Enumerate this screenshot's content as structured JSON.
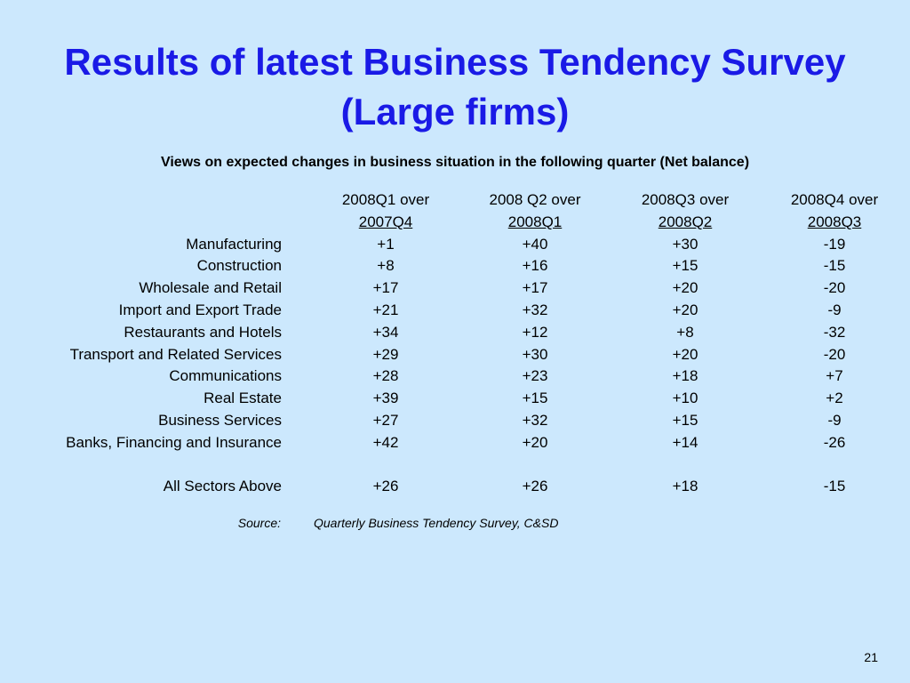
{
  "title_line1": "Results of latest Business Tendency Survey",
  "title_line2": "(Large firms)",
  "subtitle": "Views on expected changes in business situation in the following quarter (Net balance)",
  "columns": [
    {
      "line1": "2008Q1 over",
      "line2": "2007Q4"
    },
    {
      "line1": "2008 Q2 over",
      "line2": "2008Q1"
    },
    {
      "line1": "2008Q3 over",
      "line2": "2008Q2"
    },
    {
      "line1": "2008Q4 over",
      "line2": "2008Q3"
    }
  ],
  "rows": [
    {
      "label": "Manufacturing",
      "values": [
        "+1",
        "+40",
        "+30",
        "-19"
      ]
    },
    {
      "label": "Construction",
      "values": [
        "+8",
        "+16",
        "+15",
        "-15"
      ]
    },
    {
      "label": "Wholesale and Retail",
      "values": [
        "+17",
        "+17",
        "+20",
        "-20"
      ]
    },
    {
      "label": "Import and Export Trade",
      "values": [
        "+21",
        "+32",
        "+20",
        "-9"
      ]
    },
    {
      "label": "Restaurants and Hotels",
      "values": [
        "+34",
        "+12",
        "+8",
        "-32"
      ]
    },
    {
      "label": "Transport and Related Services",
      "values": [
        "+29",
        "+30",
        "+20",
        "-20"
      ]
    },
    {
      "label": "Communications",
      "values": [
        "+28",
        "+23",
        "+18",
        "+7"
      ]
    },
    {
      "label": "Real Estate",
      "values": [
        "+39",
        "+15",
        "+10",
        "+2"
      ]
    },
    {
      "label": "Business Services",
      "values": [
        "+27",
        "+32",
        "+15",
        "-9"
      ]
    },
    {
      "label": "Banks, Financing and Insurance",
      "values": [
        "+42",
        "+20",
        "+14",
        "-26"
      ]
    }
  ],
  "total": {
    "label": "All Sectors Above",
    "values": [
      "+26",
      "+26",
      "+18",
      "-15"
    ]
  },
  "source_label": "Source:",
  "source_text": "Quarterly Business Tendency Survey, C&SD",
  "page_number": "21",
  "colors": {
    "background": "#cce8fd",
    "title": "#1a1ae6",
    "text": "#000000"
  }
}
